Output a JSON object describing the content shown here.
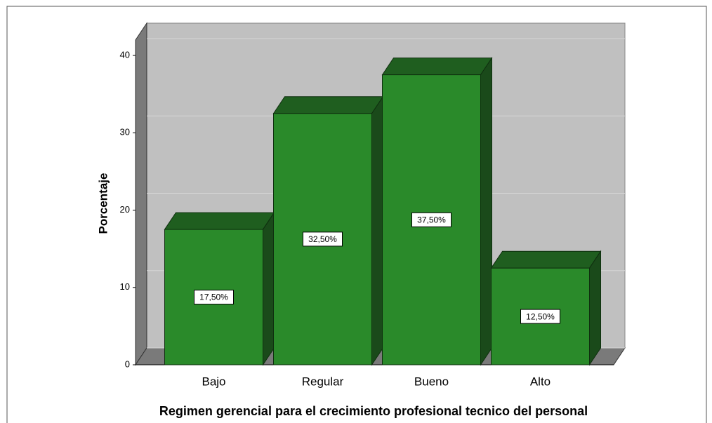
{
  "chart_data": {
    "type": "bar3d",
    "categories": [
      "Bajo",
      "Regular",
      "Bueno",
      "Alto"
    ],
    "values": [
      17.5,
      32.5,
      37.5,
      12.5
    ],
    "value_labels": [
      "17,50%",
      "32,50%",
      "37,50%",
      "12,50%"
    ],
    "color": "#2a8a2a",
    "ylim": [
      0,
      42
    ],
    "yticks": [
      0,
      10,
      20,
      30,
      40
    ],
    "grid": true,
    "ylabel": "Porcentaje",
    "xlabel": "Regimen gerencial para el crecimiento profesional tecnico del personal"
  }
}
